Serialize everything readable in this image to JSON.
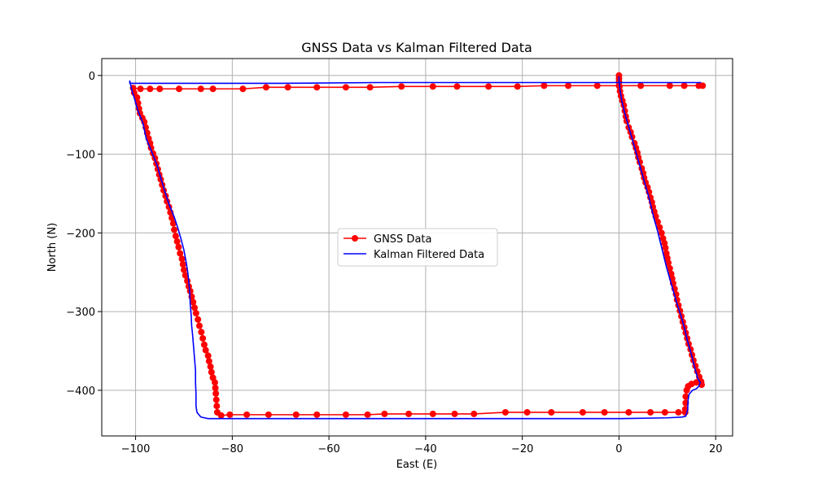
{
  "chart_data": {
    "type": "line",
    "title": "GNSS Data vs Kalman Filtered Data",
    "xlabel": "East (E)",
    "ylabel": "North (N)",
    "xlim": [
      -107,
      23.5
    ],
    "ylim": [
      -458,
      21.5
    ],
    "xticks": [
      -100,
      -80,
      -60,
      -40,
      -20,
      0,
      20
    ],
    "yticks": [
      0,
      -100,
      -200,
      -300,
      -400
    ],
    "grid": true,
    "legend_position": "center",
    "series": [
      {
        "name": "GNSS Data",
        "color": "#ff0000",
        "marker": "circle",
        "points": [
          [
            0,
            0
          ],
          [
            0,
            -4
          ],
          [
            0,
            -8
          ],
          [
            0.1,
            -14
          ],
          [
            0.2,
            -20
          ],
          [
            0.4,
            -26
          ],
          [
            0.7,
            -32
          ],
          [
            1,
            -38
          ],
          [
            1.2,
            -45
          ],
          [
            1.4,
            -52
          ],
          [
            1.6,
            -58
          ],
          [
            2,
            -66
          ],
          [
            2.4,
            -72
          ],
          [
            2.7,
            -78
          ],
          [
            3.2,
            -86
          ],
          [
            3.5,
            -92
          ],
          [
            3.8,
            -98
          ],
          [
            4,
            -104
          ],
          [
            4.3,
            -110
          ],
          [
            4.7,
            -118
          ],
          [
            5,
            -124
          ],
          [
            5.2,
            -130
          ],
          [
            5.5,
            -136
          ],
          [
            5.9,
            -142
          ],
          [
            6.2,
            -148
          ],
          [
            6.5,
            -155
          ],
          [
            6.8,
            -161
          ],
          [
            7,
            -167
          ],
          [
            7.3,
            -173
          ],
          [
            7.6,
            -179
          ],
          [
            8,
            -186
          ],
          [
            8.4,
            -193
          ],
          [
            8.8,
            -200
          ],
          [
            9.1,
            -207
          ],
          [
            9.4,
            -213
          ],
          [
            9.6,
            -219
          ],
          [
            9.8,
            -226
          ],
          [
            10,
            -232
          ],
          [
            10.2,
            -238
          ],
          [
            10.5,
            -245
          ],
          [
            10.8,
            -252
          ],
          [
            11,
            -258
          ],
          [
            11.2,
            -264
          ],
          [
            11.5,
            -271
          ],
          [
            11.8,
            -278
          ],
          [
            12,
            -285
          ],
          [
            12.3,
            -292
          ],
          [
            12.6,
            -299
          ],
          [
            12.9,
            -306
          ],
          [
            13.2,
            -313
          ],
          [
            13.5,
            -320
          ],
          [
            13.8,
            -327
          ],
          [
            14.1,
            -334
          ],
          [
            14.4,
            -341
          ],
          [
            14.8,
            -348
          ],
          [
            15.1,
            -355
          ],
          [
            15.4,
            -362
          ],
          [
            15.8,
            -369
          ],
          [
            16.2,
            -376
          ],
          [
            16.6,
            -383
          ],
          [
            17,
            -389
          ],
          [
            17.1,
            -393
          ],
          [
            16,
            -390
          ],
          [
            15,
            -392
          ],
          [
            14.3,
            -395
          ],
          [
            14,
            -400
          ],
          [
            13.8,
            -408
          ],
          [
            13.8,
            -416
          ],
          [
            13.7,
            -424
          ],
          [
            13.7,
            -428
          ],
          [
            12.3,
            -428
          ],
          [
            9.5,
            -428
          ],
          [
            6.5,
            -428
          ],
          [
            2,
            -428
          ],
          [
            -3,
            -428
          ],
          [
            -7.5,
            -428
          ],
          [
            -14,
            -428
          ],
          [
            -19,
            -428
          ],
          [
            -23.5,
            -428
          ],
          [
            -30,
            -430
          ],
          [
            -34,
            -430
          ],
          [
            -38.5,
            -430
          ],
          [
            -43.5,
            -430
          ],
          [
            -48.5,
            -430
          ],
          [
            -52,
            -431
          ],
          [
            -56.5,
            -431
          ],
          [
            -62.5,
            -431
          ],
          [
            -66.8,
            -431
          ],
          [
            -72.5,
            -431
          ],
          [
            -77,
            -431
          ],
          [
            -80.5,
            -431
          ],
          [
            -82.3,
            -432
          ],
          [
            -83.1,
            -428
          ],
          [
            -83.2,
            -420
          ],
          [
            -83.3,
            -412
          ],
          [
            -83.4,
            -404
          ],
          [
            -83.5,
            -397
          ],
          [
            -83.6,
            -390
          ],
          [
            -84,
            -384
          ],
          [
            -84.3,
            -377
          ],
          [
            -84.5,
            -370
          ],
          [
            -84.8,
            -363
          ],
          [
            -85,
            -356
          ],
          [
            -85.5,
            -349
          ],
          [
            -85.8,
            -342
          ],
          [
            -86.1,
            -334
          ],
          [
            -86.4,
            -326
          ],
          [
            -86.8,
            -318
          ],
          [
            -87.1,
            -310
          ],
          [
            -87.5,
            -302
          ],
          [
            -87.8,
            -295
          ],
          [
            -88.1,
            -288
          ],
          [
            -88.4,
            -281
          ],
          [
            -88.7,
            -274
          ],
          [
            -89,
            -268
          ],
          [
            -89.3,
            -261
          ],
          [
            -89.7,
            -254
          ],
          [
            -90,
            -247
          ],
          [
            -90.2,
            -240
          ],
          [
            -90.4,
            -233
          ],
          [
            -90.8,
            -226
          ],
          [
            -91.1,
            -218
          ],
          [
            -91.4,
            -211
          ],
          [
            -91.7,
            -204
          ],
          [
            -92,
            -196
          ],
          [
            -92.2,
            -188
          ],
          [
            -92.5,
            -181
          ],
          [
            -92.8,
            -174
          ],
          [
            -93.1,
            -167
          ],
          [
            -93.5,
            -160
          ],
          [
            -93.8,
            -153
          ],
          [
            -94.2,
            -146
          ],
          [
            -94.5,
            -139
          ],
          [
            -94.8,
            -132
          ],
          [
            -95.1,
            -126
          ],
          [
            -95.4,
            -119
          ],
          [
            -95.7,
            -112
          ],
          [
            -96,
            -105
          ],
          [
            -96.4,
            -99
          ],
          [
            -96.8,
            -92
          ],
          [
            -97,
            -86
          ],
          [
            -97.3,
            -80
          ],
          [
            -97.6,
            -73
          ],
          [
            -97.9,
            -66
          ],
          [
            -98.2,
            -59
          ],
          [
            -98.6,
            -54
          ],
          [
            -99.1,
            -48
          ],
          [
            -99.3,
            -42
          ],
          [
            -99.5,
            -35
          ],
          [
            -99.7,
            -28
          ],
          [
            -100.3,
            -22
          ],
          [
            -100.5,
            -16
          ],
          [
            -99,
            -17
          ],
          [
            -97,
            -17
          ],
          [
            -95,
            -17
          ],
          [
            -91,
            -17
          ],
          [
            -86.5,
            -17
          ],
          [
            -84,
            -17
          ],
          [
            -77.8,
            -17
          ],
          [
            -73,
            -15
          ],
          [
            -68.5,
            -15
          ],
          [
            -62.5,
            -15
          ],
          [
            -56.5,
            -15
          ],
          [
            -51.5,
            -15
          ],
          [
            -45,
            -14
          ],
          [
            -38.5,
            -14
          ],
          [
            -33.5,
            -14
          ],
          [
            -27,
            -14
          ],
          [
            -21,
            -14
          ],
          [
            -15.5,
            -13
          ],
          [
            -10.5,
            -13
          ],
          [
            -4.5,
            -13
          ],
          [
            0,
            -13
          ],
          [
            4.5,
            -13
          ],
          [
            10.5,
            -13
          ],
          [
            13.5,
            -13
          ],
          [
            16.5,
            -13
          ],
          [
            17.3,
            -13
          ]
        ]
      },
      {
        "name": "Kalman Filtered Data",
        "color": "#0000ff",
        "marker": "none",
        "points": [
          [
            17,
            -9
          ],
          [
            10,
            -9
          ],
          [
            0,
            -9
          ],
          [
            -10,
            -9
          ],
          [
            -30,
            -9
          ],
          [
            -50,
            -9
          ],
          [
            -70,
            -10
          ],
          [
            -90,
            -10
          ],
          [
            -101.2,
            -10
          ],
          [
            -101.2,
            -7
          ],
          [
            -100.8,
            -18
          ],
          [
            -100.2,
            -30
          ],
          [
            -99.5,
            -45
          ],
          [
            -98.5,
            -60
          ],
          [
            -97.8,
            -80
          ],
          [
            -96.8,
            -95
          ],
          [
            -95.5,
            -115
          ],
          [
            -94.8,
            -130
          ],
          [
            -93.8,
            -150
          ],
          [
            -93,
            -165
          ],
          [
            -92,
            -180
          ],
          [
            -91.2,
            -195
          ],
          [
            -90.5,
            -210
          ],
          [
            -90,
            -222
          ],
          [
            -89.6,
            -235
          ],
          [
            -89.2,
            -250
          ],
          [
            -89,
            -262
          ],
          [
            -88.8,
            -275
          ],
          [
            -88.7,
            -290
          ],
          [
            -88.5,
            -305
          ],
          [
            -88.4,
            -318
          ],
          [
            -88.2,
            -330
          ],
          [
            -88,
            -345
          ],
          [
            -87.8,
            -360
          ],
          [
            -87.6,
            -375
          ],
          [
            -87.6,
            -390
          ],
          [
            -87.5,
            -405
          ],
          [
            -87.5,
            -420
          ],
          [
            -87.3,
            -428
          ],
          [
            -86.5,
            -434
          ],
          [
            -85,
            -436
          ],
          [
            -80,
            -436
          ],
          [
            -60,
            -436
          ],
          [
            -40,
            -436
          ],
          [
            -20,
            -436
          ],
          [
            0,
            -436
          ],
          [
            10,
            -435
          ],
          [
            13,
            -434
          ],
          [
            13.8,
            -433
          ],
          [
            14.2,
            -425
          ],
          [
            14.3,
            -412
          ],
          [
            14.5,
            -405
          ],
          [
            15.2,
            -400
          ],
          [
            16,
            -398
          ],
          [
            16.5,
            -395
          ],
          [
            16.8,
            -390
          ],
          [
            16.3,
            -385
          ],
          [
            15.6,
            -370
          ],
          [
            15,
            -355
          ],
          [
            14.2,
            -338
          ],
          [
            13.5,
            -320
          ],
          [
            12.8,
            -305
          ],
          [
            12,
            -290
          ],
          [
            11.3,
            -275
          ],
          [
            10.5,
            -258
          ],
          [
            9.8,
            -243
          ],
          [
            9.2,
            -228
          ],
          [
            8.6,
            -213
          ],
          [
            8,
            -198
          ],
          [
            7.3,
            -183
          ],
          [
            6.7,
            -168
          ],
          [
            6.1,
            -153
          ],
          [
            5.4,
            -138
          ],
          [
            4.7,
            -123
          ],
          [
            4,
            -108
          ],
          [
            3.3,
            -93
          ],
          [
            2.6,
            -78
          ],
          [
            1.9,
            -63
          ],
          [
            1.2,
            -48
          ],
          [
            0.6,
            -33
          ],
          [
            0.2,
            -18
          ],
          [
            0,
            -5
          ],
          [
            0,
            -1
          ]
        ]
      }
    ]
  }
}
